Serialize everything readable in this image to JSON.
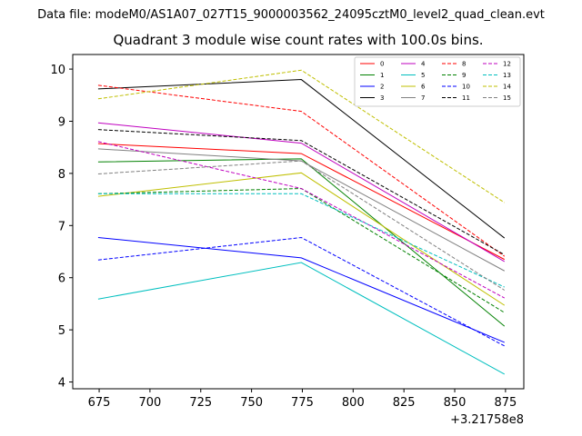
{
  "header": {
    "data_file": "Data file: modeM0/AS1A07_027T15_9000003562_24095cztM0_level2_quad_clean.evt"
  },
  "chart_data": {
    "type": "line",
    "title": "Quadrant 3 module wise count rates with 100.0s bins.",
    "xlabel": "",
    "ylabel": "",
    "x_offset_label": "+3.21758e8",
    "x": [
      674.5,
      774.5,
      874.5
    ],
    "xlim": [
      662,
      884
    ],
    "ylim": [
      3.87,
      10.28
    ],
    "x_ticks": [
      675,
      700,
      725,
      750,
      775,
      800,
      825,
      850,
      875
    ],
    "x_tick_labels": [
      "675",
      "700",
      "725",
      "750",
      "775",
      "800",
      "825",
      "850",
      "875"
    ],
    "y_ticks": [
      4,
      5,
      6,
      7,
      8,
      9,
      10
    ],
    "y_tick_labels": [
      "4",
      "5",
      "6",
      "7",
      "8",
      "9",
      "10"
    ],
    "legend_position": "top-right",
    "series": [
      {
        "name": "0",
        "color": "#ff0000",
        "dash": "solid",
        "values": [
          8.57,
          8.38,
          6.35
        ]
      },
      {
        "name": "1",
        "color": "#008000",
        "dash": "solid",
        "values": [
          8.22,
          8.28,
          5.07
        ]
      },
      {
        "name": "2",
        "color": "#0000ff",
        "dash": "solid",
        "values": [
          6.77,
          6.38,
          4.76
        ]
      },
      {
        "name": "3",
        "color": "#000000",
        "dash": "solid",
        "values": [
          9.62,
          9.8,
          6.76
        ]
      },
      {
        "name": "4",
        "color": "#bf00bf",
        "dash": "solid",
        "values": [
          8.97,
          8.58,
          6.31
        ]
      },
      {
        "name": "5",
        "color": "#00bfbf",
        "dash": "solid",
        "values": [
          5.59,
          6.29,
          4.15
        ]
      },
      {
        "name": "6",
        "color": "#bfbf00",
        "dash": "solid",
        "values": [
          7.56,
          8.01,
          5.47
        ]
      },
      {
        "name": "7",
        "color": "#808080",
        "dash": "solid",
        "values": [
          8.47,
          8.24,
          6.13
        ]
      },
      {
        "name": "8",
        "color": "#ff0000",
        "dash": "dashed",
        "values": [
          9.69,
          9.19,
          6.41
        ]
      },
      {
        "name": "9",
        "color": "#008000",
        "dash": "dashed",
        "values": [
          7.61,
          7.71,
          5.33
        ]
      },
      {
        "name": "10",
        "color": "#0000ff",
        "dash": "dashed",
        "values": [
          6.34,
          6.77,
          4.69
        ]
      },
      {
        "name": "11",
        "color": "#000000",
        "dash": "dashed",
        "values": [
          8.84,
          8.63,
          6.44
        ]
      },
      {
        "name": "12",
        "color": "#bf00bf",
        "dash": "dashed",
        "values": [
          8.61,
          7.71,
          5.61
        ]
      },
      {
        "name": "13",
        "color": "#00bfbf",
        "dash": "dashed",
        "values": [
          7.61,
          7.61,
          5.82
        ]
      },
      {
        "name": "14",
        "color": "#bfbf00",
        "dash": "dashed",
        "values": [
          9.43,
          9.98,
          7.44
        ]
      },
      {
        "name": "15",
        "color": "#808080",
        "dash": "dashed",
        "values": [
          7.99,
          8.24,
          5.76
        ]
      }
    ]
  }
}
